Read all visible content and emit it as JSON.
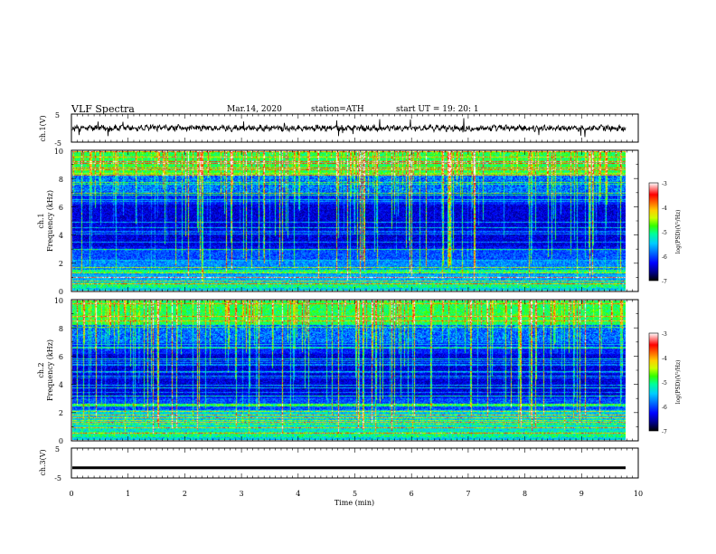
{
  "header": {
    "title": "VLF  Spectra",
    "date": "Mar.14, 2020",
    "station": "station=ATH",
    "start_ut": "start  UT  =    19: 20: 1"
  },
  "chart_data": [
    {
      "type": "line",
      "id": "ch1-waveform",
      "ylabel": "ch.1(V)",
      "ytick_labels": [
        "5",
        "-5"
      ],
      "ylim": [
        -5,
        5
      ],
      "xlim": [
        0,
        10
      ]
    },
    {
      "type": "heatmap",
      "id": "ch1-spectrogram",
      "ylabel_top": "ch.1",
      "ylabel": "Frequency  (kHz)",
      "yticks": [
        0,
        2,
        4,
        6,
        8,
        10
      ],
      "ytick_labels": [
        "0",
        "2",
        "4",
        "6",
        "8",
        "10"
      ],
      "ylim": [
        0,
        10
      ],
      "xlim": [
        0,
        9.8
      ],
      "colorbar": {
        "label": "log(PSD)(V²/Hz)",
        "ticks": [
          "-3",
          "-4",
          "-5",
          "-6",
          "-7"
        ],
        "range": [
          -7,
          -3
        ]
      }
    },
    {
      "type": "heatmap",
      "id": "ch2-spectrogram",
      "ylabel_top": "ch.2",
      "ylabel": "Frequency  (kHz)",
      "yticks": [
        0,
        2,
        4,
        6,
        8,
        10
      ],
      "ytick_labels": [
        "0",
        "2",
        "4",
        "6",
        "8",
        "10"
      ],
      "ylim": [
        0,
        10
      ],
      "xlim": [
        0,
        9.8
      ],
      "colorbar": {
        "label": "log(PSD)(V²/Hz)",
        "ticks": [
          "-3",
          "-4",
          "-5",
          "-6",
          "-7"
        ],
        "range": [
          -7,
          -3
        ]
      }
    },
    {
      "type": "line",
      "id": "ch3-waveform",
      "ylabel": "ch.3(V)",
      "ytick_labels": [
        "5",
        "-5"
      ],
      "ylim": [
        -5,
        5
      ],
      "xlim": [
        0,
        10
      ],
      "y": [
        -1.6
      ]
    }
  ],
  "xaxis": {
    "label": "Time  (min)",
    "ticks": [
      "0",
      "1",
      "2",
      "3",
      "4",
      "5",
      "6",
      "7",
      "8",
      "9",
      "10"
    ],
    "xlim": [
      0,
      10
    ]
  },
  "colors": {
    "colormap": [
      "#000000",
      "#000080",
      "#0000ff",
      "#0066ff",
      "#00ccff",
      "#00ff99",
      "#33ff00",
      "#ccff00",
      "#ffcc00",
      "#ff6600",
      "#ff0000",
      "#ffffff"
    ]
  }
}
